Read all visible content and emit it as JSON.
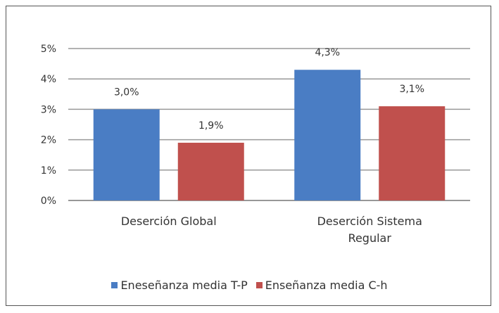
{
  "chart_data": {
    "type": "bar",
    "categories": [
      "Deserción Global",
      "Deserción Sistema Regular"
    ],
    "series": [
      {
        "name": "Eneseñanza media T-P",
        "color": "#4a7dc4",
        "values": [
          3.0,
          4.3
        ],
        "value_labels": [
          "3,0%",
          "4,3%"
        ]
      },
      {
        "name": "Enseñanza media C-h",
        "color": "#c0504d",
        "values": [
          1.9,
          3.1
        ],
        "value_labels": [
          "1,9%",
          "3,1%"
        ]
      }
    ],
    "ylim": [
      0,
      5
    ],
    "yticks": [
      {
        "value": 0,
        "label": "0%"
      },
      {
        "value": 1,
        "label": "1%"
      },
      {
        "value": 2,
        "label": "2%"
      },
      {
        "value": 3,
        "label": "3%"
      },
      {
        "value": 4,
        "label": "4%"
      },
      {
        "value": 5,
        "label": "5%"
      }
    ],
    "grid": true,
    "legend": "bottom"
  }
}
